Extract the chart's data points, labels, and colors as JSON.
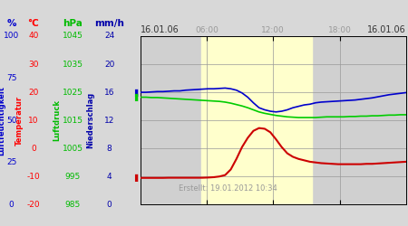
{
  "title_left": "16.01.06",
  "title_right": "16.01.06",
  "created": "Erstellt: 19.01.2012 10:34",
  "xlabel_times": [
    "06:00",
    "12:00",
    "18:00"
  ],
  "bg_color": "#d8d8d8",
  "plot_bg_color": "#d0d0d0",
  "yellow_bg": "#ffffcc",
  "yellow_start_h": 5.5,
  "yellow_end_h": 15.5,
  "pct_header": "%",
  "temp_header": "°C",
  "hpa_header": "hPa",
  "mmh_header": "mm/h",
  "pct_color": "#0000cc",
  "temp_color": "#ff0000",
  "hpa_color": "#00bb00",
  "mmh_color": "#0000aa",
  "pct_vals": [
    100,
    75,
    50,
    25,
    0
  ],
  "temp_vals": [
    40,
    30,
    20,
    10,
    0,
    -10,
    -20
  ],
  "hpa_vals": [
    1045,
    1035,
    1025,
    1015,
    1005,
    995,
    985
  ],
  "mmh_vals": [
    24,
    20,
    16,
    12,
    8,
    4,
    0
  ],
  "label_Luftfeuchtigkeit": "Luftfeuchtigkeit",
  "label_Temperatur": "Temperatur",
  "label_Luftdruck": "Luftdruck",
  "label_Niederschlag": "Niederschlag",
  "blue_line_y": [
    16.0,
    16.0,
    16.05,
    16.1,
    16.1,
    16.15,
    16.2,
    16.2,
    16.3,
    16.35,
    16.4,
    16.45,
    16.5,
    16.5,
    16.55,
    16.6,
    16.5,
    16.3,
    15.9,
    15.3,
    14.5,
    13.8,
    13.5,
    13.3,
    13.2,
    13.3,
    13.5,
    13.8,
    14.0,
    14.2,
    14.3,
    14.5,
    14.6,
    14.65,
    14.7,
    14.75,
    14.8,
    14.85,
    14.9,
    15.0,
    15.1,
    15.2,
    15.35,
    15.5,
    15.65,
    15.75,
    15.85,
    15.95
  ],
  "green_line_y": [
    15.3,
    15.3,
    15.25,
    15.25,
    15.2,
    15.15,
    15.1,
    15.05,
    15.0,
    14.95,
    14.9,
    14.85,
    14.8,
    14.75,
    14.7,
    14.6,
    14.45,
    14.25,
    14.05,
    13.8,
    13.5,
    13.2,
    13.0,
    12.85,
    12.7,
    12.6,
    12.5,
    12.45,
    12.4,
    12.4,
    12.4,
    12.4,
    12.45,
    12.5,
    12.5,
    12.5,
    12.5,
    12.55,
    12.55,
    12.6,
    12.6,
    12.65,
    12.65,
    12.7,
    12.75,
    12.75,
    12.8,
    12.8
  ],
  "red_line_y": [
    3.8,
    3.8,
    3.8,
    3.8,
    3.8,
    3.82,
    3.82,
    3.82,
    3.82,
    3.82,
    3.82,
    3.82,
    3.85,
    3.9,
    4.0,
    4.2,
    5.0,
    6.5,
    8.2,
    9.5,
    10.5,
    10.9,
    10.8,
    10.3,
    9.3,
    8.2,
    7.3,
    6.8,
    6.5,
    6.3,
    6.1,
    6.0,
    5.9,
    5.85,
    5.8,
    5.75,
    5.75,
    5.75,
    5.75,
    5.75,
    5.8,
    5.8,
    5.85,
    5.9,
    5.95,
    6.0,
    6.05,
    6.1
  ],
  "blue_color": "#0000cc",
  "green_color": "#00cc00",
  "red_color": "#cc0000",
  "grid_color": "#999999",
  "text_color": "#999999",
  "ylim": [
    0,
    24
  ],
  "xlim": [
    0,
    24
  ]
}
